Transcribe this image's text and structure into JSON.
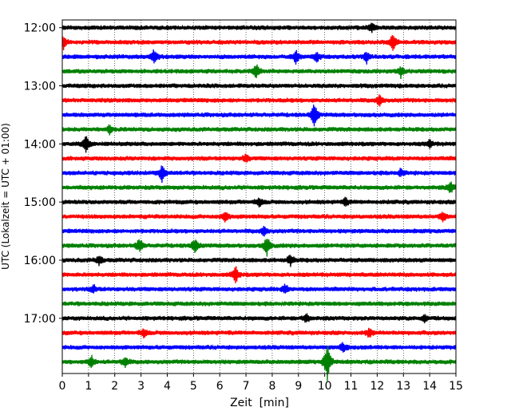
{
  "chart_data": {
    "type": "line",
    "title": "",
    "xlabel": "Zeit  [min]",
    "ylabel": "UTC (Lokalzeit = UTC + 01:00)",
    "xlim": [
      0,
      15
    ],
    "x_ticks": [
      0,
      1,
      2,
      3,
      4,
      5,
      6,
      7,
      8,
      9,
      10,
      11,
      12,
      13,
      14,
      15
    ],
    "y_time_range": [
      "11:52",
      "17:57"
    ],
    "y_ticks": [
      "12:00",
      "13:00",
      "14:00",
      "15:00",
      "16:00",
      "17:00"
    ],
    "grid": "vertical dotted lines at each minute",
    "trace_interval_minutes": 15,
    "color_cycle": [
      "#000000",
      "#ff0000",
      "#0000ff",
      "#008000"
    ],
    "series": [
      {
        "start": "12:00",
        "color": "#000000",
        "events": [
          {
            "t": 11.8,
            "amp": 0.5
          }
        ]
      },
      {
        "start": "12:15",
        "color": "#ff0000",
        "events": [
          {
            "t": 0.05,
            "amp": 0.6
          },
          {
            "t": 12.6,
            "amp": 0.9
          }
        ]
      },
      {
        "start": "12:30",
        "color": "#0000ff",
        "events": [
          {
            "t": 3.5,
            "amp": 0.8
          },
          {
            "t": 8.9,
            "amp": 0.7
          },
          {
            "t": 9.7,
            "amp": 0.6
          },
          {
            "t": 11.6,
            "amp": 0.6
          }
        ]
      },
      {
        "start": "12:45",
        "color": "#008000",
        "events": [
          {
            "t": 7.4,
            "amp": 0.8
          },
          {
            "t": 12.9,
            "amp": 0.6
          }
        ]
      },
      {
        "start": "13:00",
        "color": "#000000",
        "events": []
      },
      {
        "start": "13:15",
        "color": "#ff0000",
        "events": [
          {
            "t": 12.1,
            "amp": 0.6
          }
        ]
      },
      {
        "start": "13:30",
        "color": "#0000ff",
        "events": [
          {
            "t": 9.6,
            "amp": 1.3
          }
        ]
      },
      {
        "start": "13:45",
        "color": "#008000",
        "events": [
          {
            "t": 1.8,
            "amp": 0.4
          }
        ]
      },
      {
        "start": "14:00",
        "color": "#000000",
        "events": [
          {
            "t": 0.9,
            "amp": 0.9
          },
          {
            "t": 14.0,
            "amp": 0.4
          }
        ]
      },
      {
        "start": "14:15",
        "color": "#ff0000",
        "events": [
          {
            "t": 7.0,
            "amp": 0.4
          }
        ]
      },
      {
        "start": "14:30",
        "color": "#0000ff",
        "events": [
          {
            "t": 3.8,
            "amp": 0.9
          },
          {
            "t": 12.9,
            "amp": 0.4
          }
        ]
      },
      {
        "start": "14:45",
        "color": "#008000",
        "events": [
          {
            "t": 14.8,
            "amp": 0.6
          }
        ]
      },
      {
        "start": "15:00",
        "color": "#000000",
        "events": [
          {
            "t": 7.5,
            "amp": 0.5
          },
          {
            "t": 10.8,
            "amp": 0.4
          }
        ]
      },
      {
        "start": "15:15",
        "color": "#ff0000",
        "events": [
          {
            "t": 6.2,
            "amp": 0.6
          },
          {
            "t": 14.5,
            "amp": 0.5
          }
        ]
      },
      {
        "start": "15:30",
        "color": "#0000ff",
        "events": [
          {
            "t": 7.7,
            "amp": 0.5
          }
        ]
      },
      {
        "start": "15:45",
        "color": "#008000",
        "events": [
          {
            "t": 2.95,
            "amp": 0.8
          },
          {
            "t": 5.05,
            "amp": 0.8
          },
          {
            "t": 7.8,
            "amp": 1.1
          }
        ]
      },
      {
        "start": "16:00",
        "color": "#000000",
        "events": [
          {
            "t": 1.4,
            "amp": 0.5
          },
          {
            "t": 8.7,
            "amp": 0.6
          }
        ]
      },
      {
        "start": "16:15",
        "color": "#ff0000",
        "events": [
          {
            "t": 6.6,
            "amp": 0.9
          }
        ]
      },
      {
        "start": "16:30",
        "color": "#0000ff",
        "events": [
          {
            "t": 1.2,
            "amp": 0.4
          },
          {
            "t": 8.5,
            "amp": 0.5
          }
        ]
      },
      {
        "start": "16:45",
        "color": "#008000",
        "events": []
      },
      {
        "start": "17:00",
        "color": "#000000",
        "events": [
          {
            "t": 9.3,
            "amp": 0.5
          },
          {
            "t": 13.8,
            "amp": 0.4
          }
        ]
      },
      {
        "start": "17:15",
        "color": "#ff0000",
        "events": [
          {
            "t": 3.1,
            "amp": 0.5
          },
          {
            "t": 11.7,
            "amp": 0.5
          }
        ]
      },
      {
        "start": "17:30",
        "color": "#0000ff",
        "events": [
          {
            "t": 10.7,
            "amp": 0.5
          }
        ]
      },
      {
        "start": "17:45",
        "color": "#008000",
        "events": [
          {
            "t": 1.1,
            "amp": 0.7
          },
          {
            "t": 2.4,
            "amp": 0.6
          },
          {
            "t": 10.1,
            "amp": 2.2
          }
        ]
      }
    ]
  }
}
